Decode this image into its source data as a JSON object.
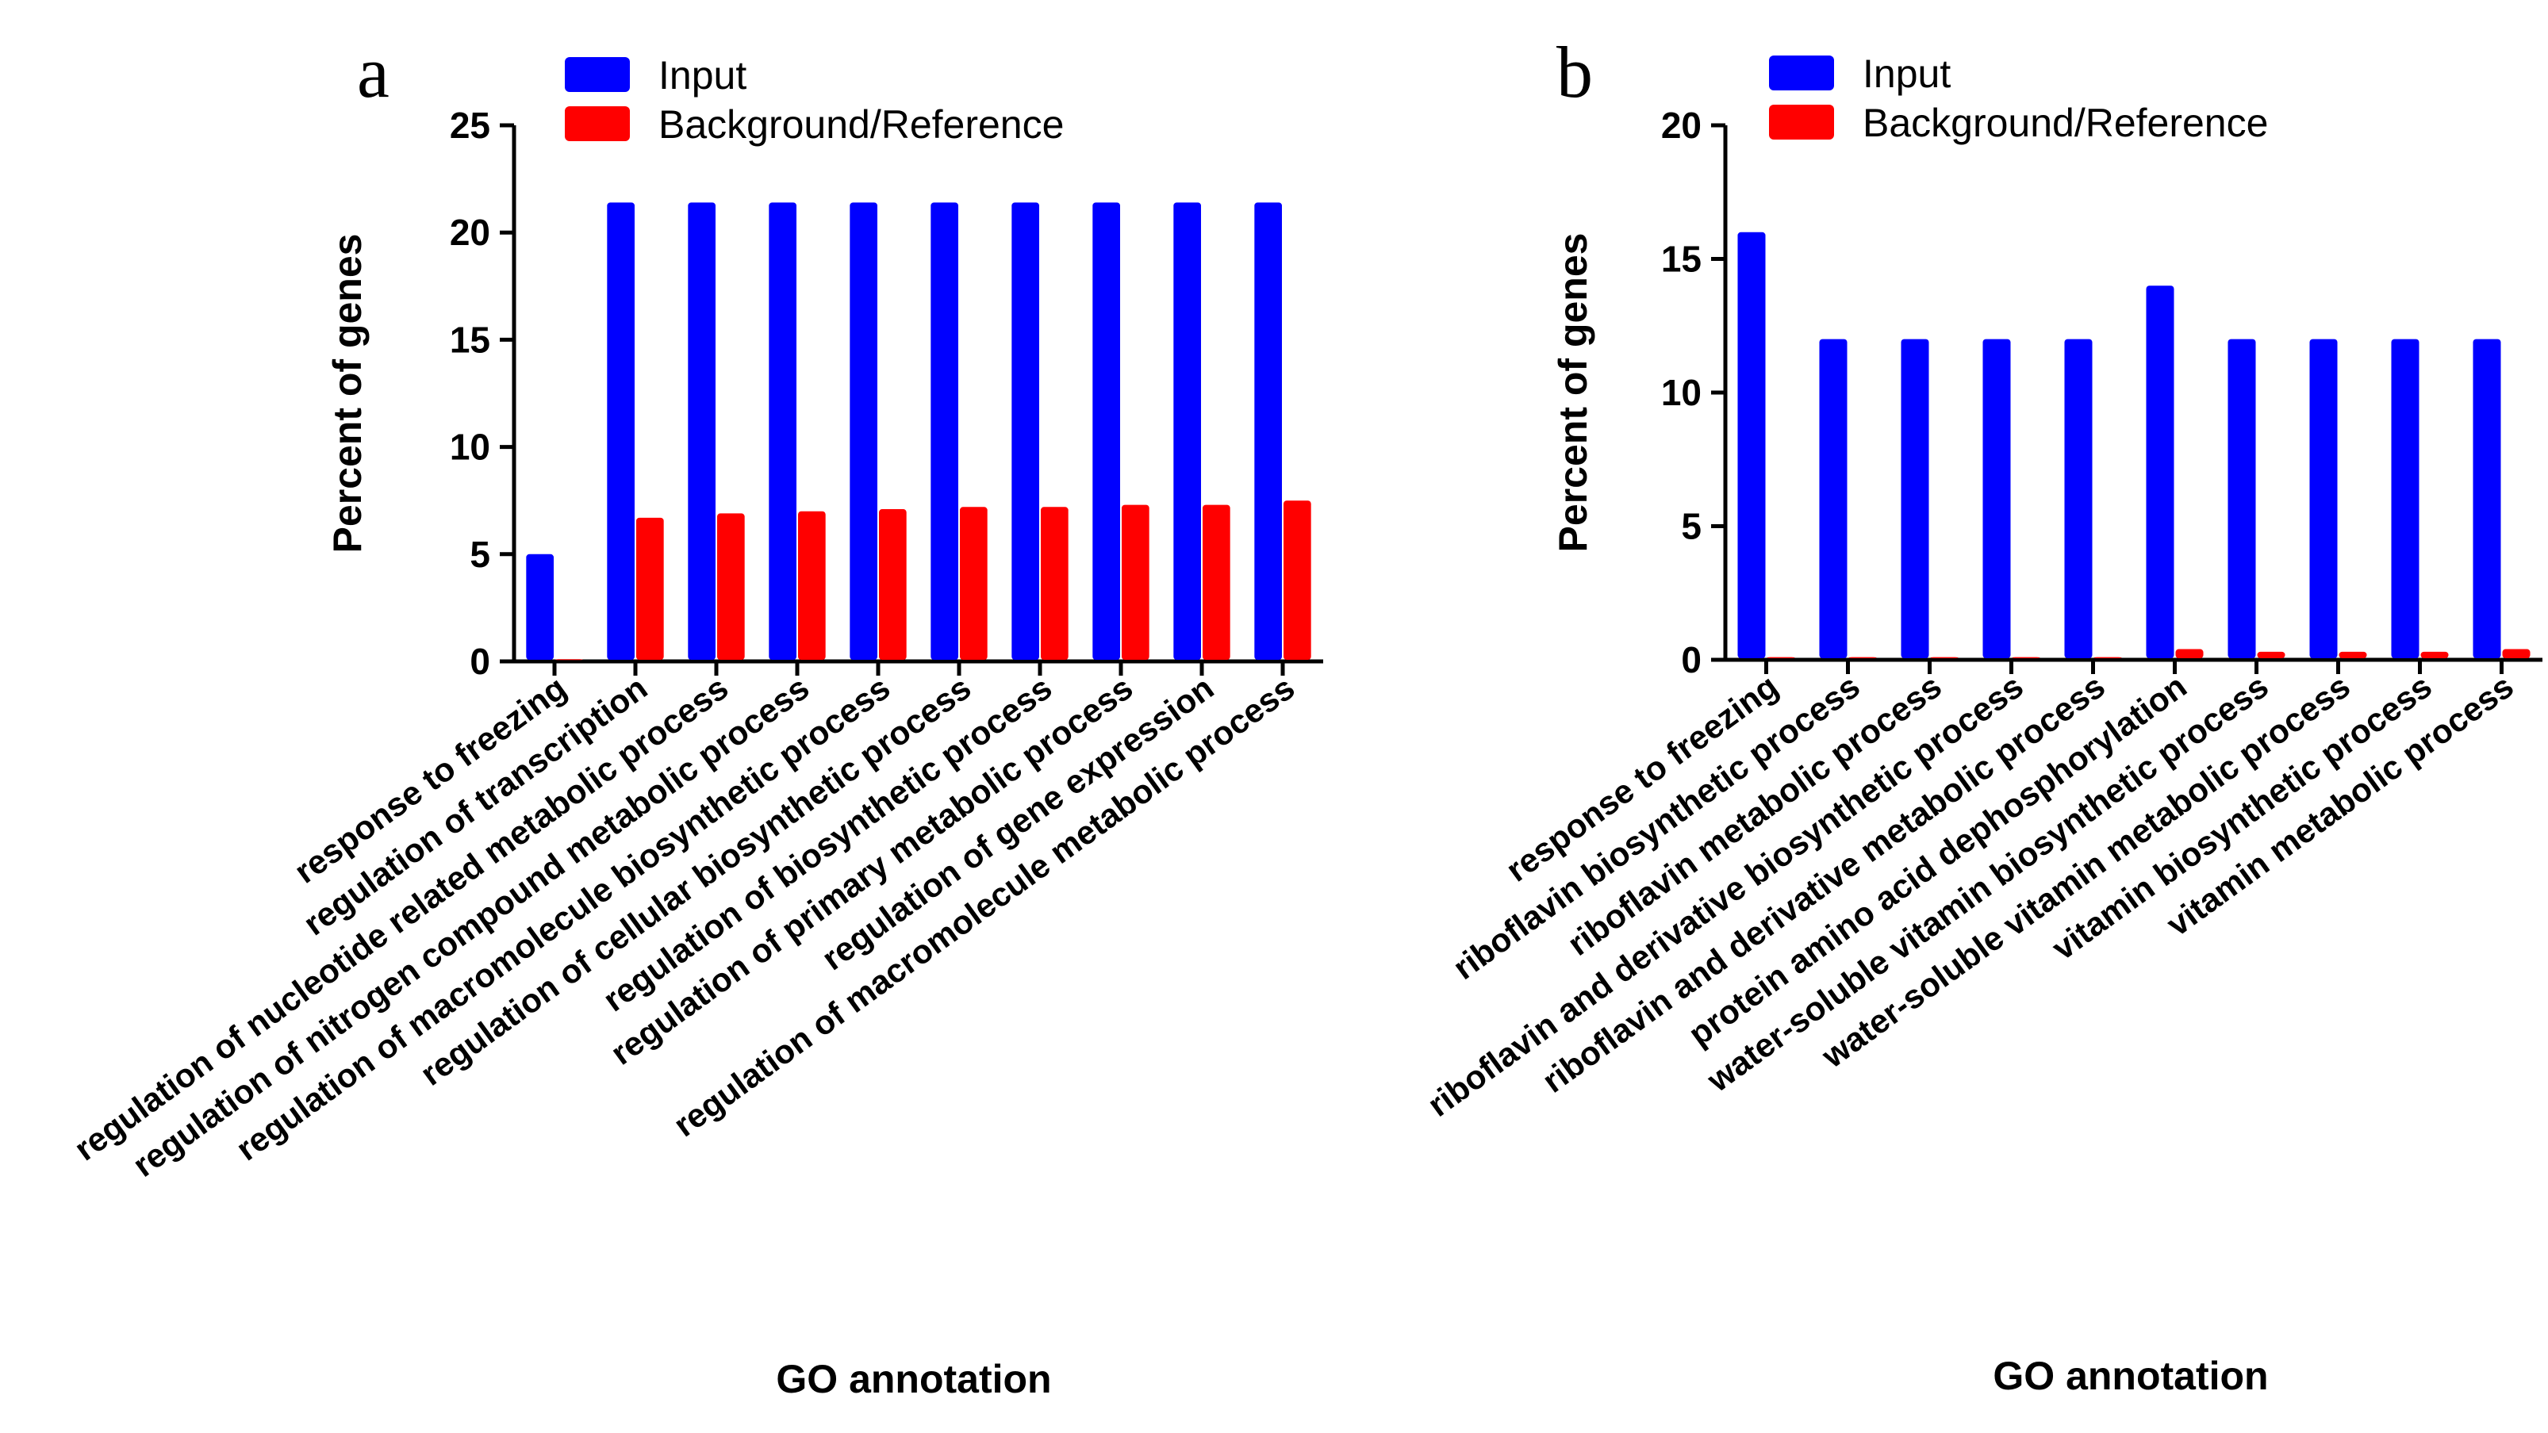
{
  "chart_data": [
    {
      "panel": "a",
      "type": "bar",
      "title": "",
      "xlabel": "GO annotation",
      "ylabel": "Percent of genes",
      "ylim": [
        0,
        25
      ],
      "yticks": [
        0,
        5,
        10,
        15,
        20,
        25
      ],
      "grid": false,
      "legend_position": "top-left",
      "categories": [
        "response to freezing",
        "regulation of transcription",
        "regulation of nucleotide related metabolic process",
        "regulation of nitrogen compound metabolic process",
        "regulation of macromolecule biosynthetic process",
        "regulation of cellular biosynthetic process",
        "regulation of biosynthetic process",
        "regulation of primary metabolic process",
        "regulation of gene expression",
        "regulation of macromolecule metabolic process"
      ],
      "series": [
        {
          "name": "Input",
          "color": "#0000ff",
          "values": [
            5.0,
            21.4,
            21.4,
            21.4,
            21.4,
            21.4,
            21.4,
            21.4,
            21.4,
            21.4
          ]
        },
        {
          "name": "Background/Reference",
          "color": "#ff0000",
          "values": [
            0.1,
            6.7,
            6.9,
            7.0,
            7.1,
            7.2,
            7.2,
            7.3,
            7.3,
            7.5
          ]
        }
      ]
    },
    {
      "panel": "b",
      "type": "bar",
      "title": "",
      "xlabel": "GO annotation",
      "ylabel": "Percent of genes",
      "ylim": [
        0,
        20
      ],
      "yticks": [
        0,
        5,
        10,
        15,
        20
      ],
      "grid": false,
      "legend_position": "top-left",
      "categories": [
        "response to freezing",
        "riboflavin biosynthetic process",
        "riboflavin metabolic process",
        "riboflavin and derivative biosynthetic process",
        "riboflavin and derivative metabolic process",
        "protein amino acid dephosphorylation",
        "water-soluble vitamin biosynthetic process",
        "water-soluble vitamin metabolic process",
        "vitamin biosynthetic process",
        "vitamin metabolic process"
      ],
      "series": [
        {
          "name": "Input",
          "color": "#0000ff",
          "values": [
            16.0,
            12.0,
            12.0,
            12.0,
            12.0,
            14.0,
            12.0,
            12.0,
            12.0,
            12.0
          ]
        },
        {
          "name": "Background/Reference",
          "color": "#ff0000",
          "values": [
            0.1,
            0.1,
            0.1,
            0.1,
            0.1,
            0.4,
            0.3,
            0.3,
            0.3,
            0.4
          ]
        }
      ]
    }
  ]
}
